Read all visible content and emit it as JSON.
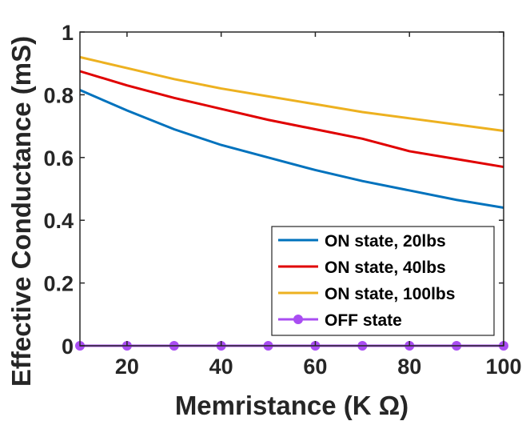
{
  "chart_data": {
    "type": "line",
    "title": "",
    "xlabel": "Memristance (K Ω)",
    "ylabel": "Effective Conductance (mS)",
    "xlim": [
      10,
      100
    ],
    "ylim": [
      0,
      1
    ],
    "xticks": [
      20,
      40,
      60,
      80,
      100
    ],
    "yticks": [
      0,
      0.2,
      0.4,
      0.6,
      0.8,
      1
    ],
    "ytick_labels": [
      "0",
      "0.2",
      "0.4",
      "0.6",
      "0.8",
      "1"
    ],
    "grid": false,
    "legend_position": "bottom-right",
    "x": [
      10,
      20,
      30,
      40,
      50,
      60,
      70,
      80,
      90,
      100
    ],
    "series": [
      {
        "name": "ON state, 20lbs",
        "color": "#0072BD",
        "marker": "none",
        "values": [
          0.815,
          0.75,
          0.69,
          0.64,
          0.6,
          0.56,
          0.525,
          0.495,
          0.465,
          0.44
        ]
      },
      {
        "name": "ON state, 40lbs",
        "color": "#E00000",
        "marker": "none",
        "values": [
          0.875,
          0.83,
          0.79,
          0.755,
          0.72,
          0.69,
          0.66,
          0.62,
          0.595,
          0.57
        ]
      },
      {
        "name": "ON state, 100lbs",
        "color": "#EDB120",
        "marker": "none",
        "values": [
          0.92,
          0.885,
          0.85,
          0.82,
          0.795,
          0.77,
          0.745,
          0.725,
          0.705,
          0.685
        ]
      },
      {
        "name": "OFF state",
        "color": "#A94DF2",
        "marker": "circle",
        "values": [
          0,
          0,
          0,
          0,
          0,
          0,
          0,
          0,
          0,
          0
        ]
      }
    ]
  }
}
